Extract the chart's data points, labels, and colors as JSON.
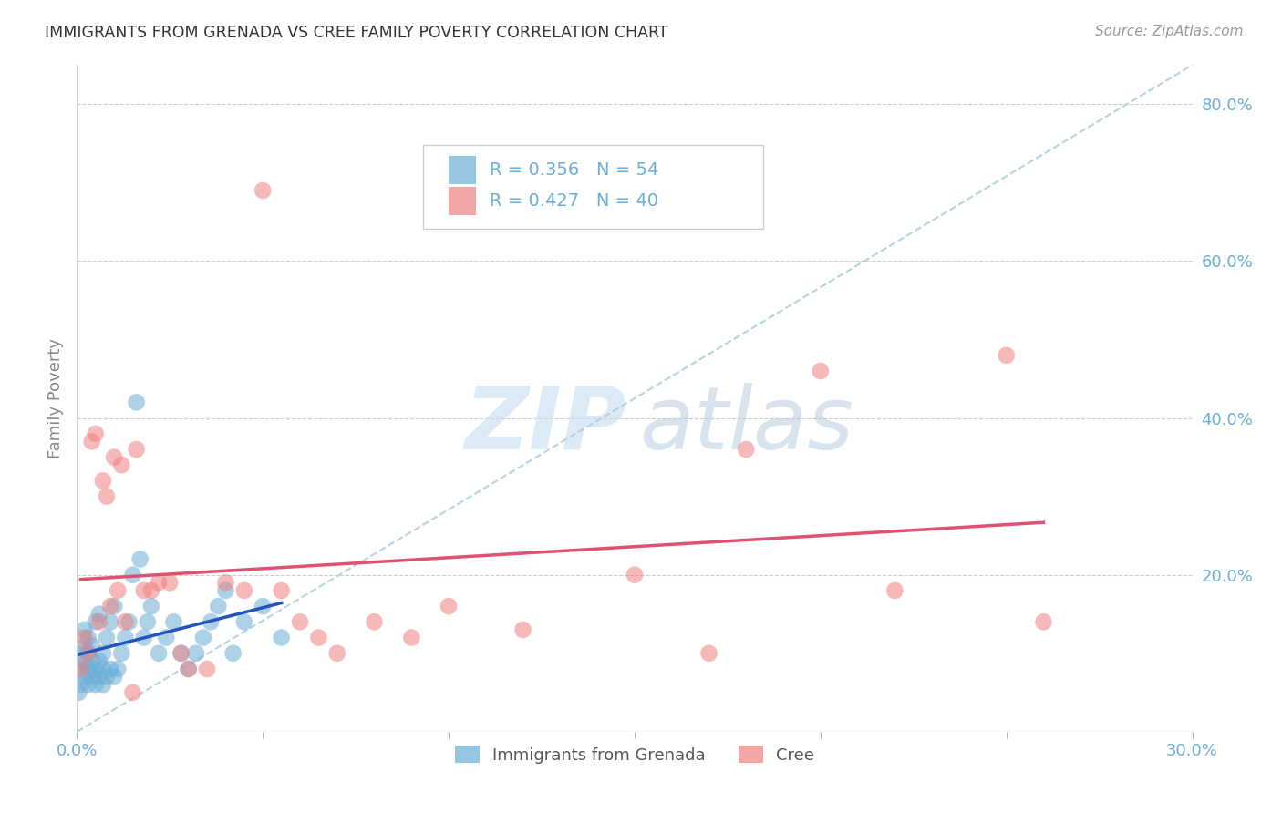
{
  "title": "IMMIGRANTS FROM GRENADA VS CREE FAMILY POVERTY CORRELATION CHART",
  "source": "Source: ZipAtlas.com",
  "ylabel": "Family Poverty",
  "xlim": [
    0.0,
    0.3
  ],
  "ylim": [
    0.0,
    0.85
  ],
  "legend_labels": [
    "Immigrants from Grenada",
    "Cree"
  ],
  "series1_color": "#6baed6",
  "series2_color": "#f08080",
  "series1_R": 0.356,
  "series1_N": 54,
  "series2_R": 0.427,
  "series2_N": 40,
  "watermark": "ZIPatlas",
  "background_color": "#ffffff",
  "grid_color": "#cccccc",
  "title_color": "#333333",
  "axis_label_color": "#6baed6",
  "series1_x": [
    0.0005,
    0.001,
    0.001,
    0.001,
    0.002,
    0.002,
    0.002,
    0.002,
    0.003,
    0.003,
    0.003,
    0.003,
    0.004,
    0.004,
    0.004,
    0.005,
    0.005,
    0.005,
    0.006,
    0.006,
    0.006,
    0.007,
    0.007,
    0.007,
    0.008,
    0.008,
    0.009,
    0.009,
    0.01,
    0.01,
    0.011,
    0.012,
    0.013,
    0.014,
    0.015,
    0.016,
    0.017,
    0.018,
    0.019,
    0.02,
    0.022,
    0.024,
    0.026,
    0.028,
    0.03,
    0.032,
    0.034,
    0.036,
    0.038,
    0.04,
    0.042,
    0.045,
    0.05,
    0.055
  ],
  "series1_y": [
    0.05,
    0.06,
    0.08,
    0.1,
    0.07,
    0.09,
    0.11,
    0.13,
    0.06,
    0.08,
    0.1,
    0.12,
    0.07,
    0.09,
    0.11,
    0.06,
    0.08,
    0.14,
    0.07,
    0.09,
    0.15,
    0.06,
    0.08,
    0.1,
    0.07,
    0.12,
    0.08,
    0.14,
    0.07,
    0.16,
    0.08,
    0.1,
    0.12,
    0.14,
    0.2,
    0.42,
    0.22,
    0.12,
    0.14,
    0.16,
    0.1,
    0.12,
    0.14,
    0.1,
    0.08,
    0.1,
    0.12,
    0.14,
    0.16,
    0.18,
    0.1,
    0.14,
    0.16,
    0.12
  ],
  "series2_x": [
    0.001,
    0.002,
    0.003,
    0.004,
    0.005,
    0.006,
    0.007,
    0.008,
    0.009,
    0.01,
    0.011,
    0.012,
    0.013,
    0.015,
    0.016,
    0.018,
    0.02,
    0.022,
    0.025,
    0.028,
    0.03,
    0.035,
    0.04,
    0.045,
    0.05,
    0.055,
    0.06,
    0.065,
    0.07,
    0.08,
    0.09,
    0.1,
    0.12,
    0.15,
    0.17,
    0.18,
    0.2,
    0.22,
    0.25,
    0.26
  ],
  "series2_y": [
    0.08,
    0.12,
    0.1,
    0.37,
    0.38,
    0.14,
    0.32,
    0.3,
    0.16,
    0.35,
    0.18,
    0.34,
    0.14,
    0.05,
    0.36,
    0.18,
    0.18,
    0.19,
    0.19,
    0.1,
    0.08,
    0.08,
    0.19,
    0.18,
    0.69,
    0.18,
    0.14,
    0.12,
    0.1,
    0.14,
    0.12,
    0.16,
    0.13,
    0.2,
    0.1,
    0.36,
    0.46,
    0.18,
    0.48,
    0.14
  ]
}
